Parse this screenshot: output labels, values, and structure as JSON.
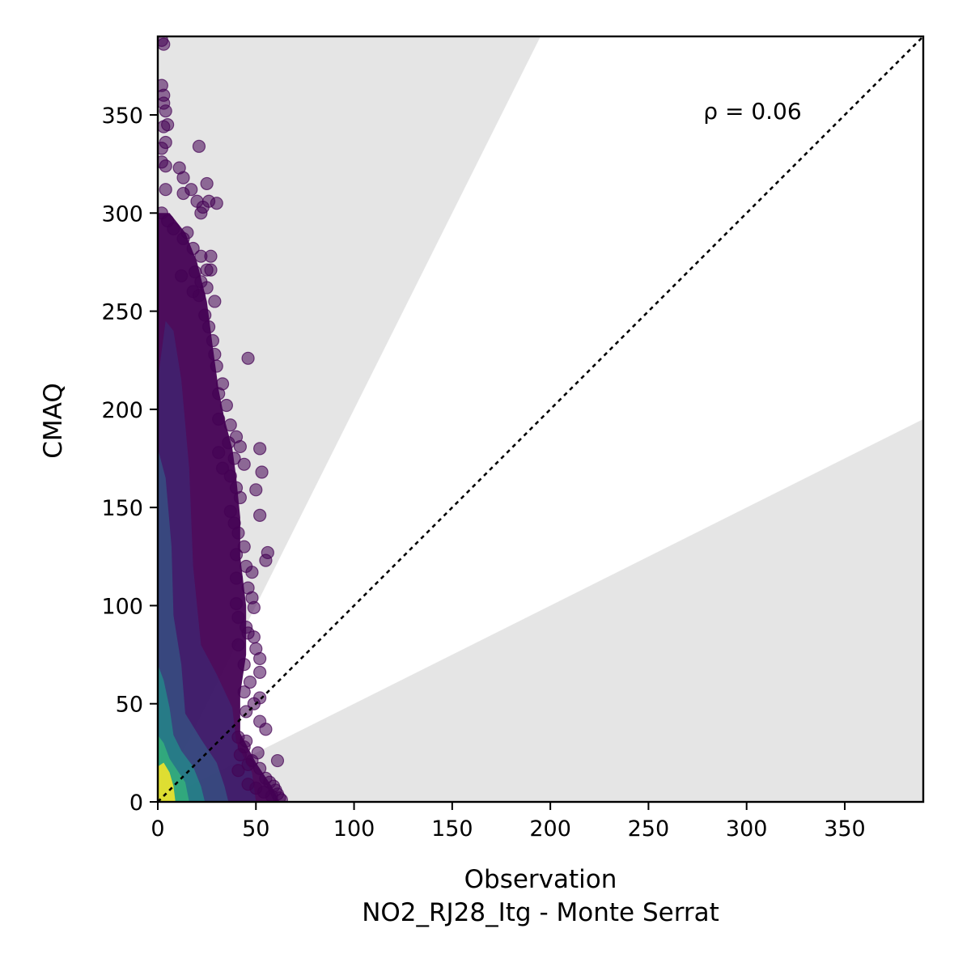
{
  "chart_data": {
    "type": "scatter",
    "title": "",
    "xlabel": "Observation",
    "xlabel_line2": "NO2_RJ28_Itg - Monte Serrat",
    "ylabel": "CMAQ",
    "xlim": [
      0,
      390
    ],
    "ylim": [
      0,
      390
    ],
    "xticks": [
      0,
      50,
      100,
      150,
      200,
      250,
      300,
      350
    ],
    "yticks": [
      0,
      50,
      100,
      150,
      200,
      250,
      300,
      350
    ],
    "xtick_labels": [
      "0",
      "50",
      "100",
      "150",
      "200",
      "250",
      "300",
      "350"
    ],
    "ytick_labels": [
      "0",
      "50",
      "100",
      "150",
      "200",
      "250",
      "300",
      "350"
    ],
    "annotation": "ρ = 0.06",
    "identity_line": true,
    "shaded_regions": "outside factor-of-2 band (y > 2x and y < 0.5x)",
    "grid": false,
    "colormap": "viridis (point density)",
    "colors": {
      "low_density": "#440154",
      "mid_density": "#31688e",
      "high_density": "#35b779",
      "peak_density": "#fde725",
      "shade": "#e5e5e5"
    },
    "points": [
      [
        2,
        388
      ],
      [
        3,
        386
      ],
      [
        2,
        365
      ],
      [
        3,
        360
      ],
      [
        3,
        356
      ],
      [
        4,
        352
      ],
      [
        3,
        344
      ],
      [
        5,
        345
      ],
      [
        4,
        336
      ],
      [
        21,
        334
      ],
      [
        2,
        333
      ],
      [
        2,
        326
      ],
      [
        4,
        324
      ],
      [
        11,
        323
      ],
      [
        13,
        318
      ],
      [
        17,
        312
      ],
      [
        4,
        312
      ],
      [
        25,
        315
      ],
      [
        26,
        306
      ],
      [
        13,
        310
      ],
      [
        20,
        306
      ],
      [
        22,
        300
      ],
      [
        30,
        305
      ],
      [
        23,
        303
      ],
      [
        2,
        300
      ],
      [
        5,
        296
      ],
      [
        8,
        292
      ],
      [
        15,
        290
      ],
      [
        13,
        287
      ],
      [
        18,
        282
      ],
      [
        22,
        278
      ],
      [
        27,
        278
      ],
      [
        25,
        271
      ],
      [
        19,
        270
      ],
      [
        27,
        271
      ],
      [
        12,
        268
      ],
      [
        22,
        265
      ],
      [
        25,
        262
      ],
      [
        18,
        260
      ],
      [
        29,
        255
      ],
      [
        21,
        258
      ],
      [
        24,
        248
      ],
      [
        26,
        242
      ],
      [
        28,
        235
      ],
      [
        29,
        228
      ],
      [
        46,
        226
      ],
      [
        30,
        222
      ],
      [
        33,
        213
      ],
      [
        31,
        208
      ],
      [
        35,
        202
      ],
      [
        31,
        195
      ],
      [
        37,
        192
      ],
      [
        40,
        186
      ],
      [
        42,
        181
      ],
      [
        36,
        183
      ],
      [
        52,
        180
      ],
      [
        31,
        178
      ],
      [
        39,
        175
      ],
      [
        44,
        172
      ],
      [
        53,
        168
      ],
      [
        33,
        170
      ],
      [
        37,
        166
      ],
      [
        40,
        160
      ],
      [
        50,
        159
      ],
      [
        42,
        155
      ],
      [
        37,
        148
      ],
      [
        52,
        146
      ],
      [
        39,
        142
      ],
      [
        41,
        137
      ],
      [
        44,
        130
      ],
      [
        56,
        127
      ],
      [
        55,
        123
      ],
      [
        40,
        126
      ],
      [
        45,
        120
      ],
      [
        48,
        117
      ],
      [
        40,
        114
      ],
      [
        46,
        109
      ],
      [
        48,
        104
      ],
      [
        40,
        101
      ],
      [
        49,
        99
      ],
      [
        41,
        94
      ],
      [
        45,
        89
      ],
      [
        46,
        86
      ],
      [
        49,
        84
      ],
      [
        41,
        80
      ],
      [
        50,
        78
      ],
      [
        52,
        73
      ],
      [
        44,
        70
      ],
      [
        52,
        66
      ],
      [
        47,
        61
      ],
      [
        44,
        56
      ],
      [
        52,
        53
      ],
      [
        49,
        50
      ],
      [
        45,
        46
      ],
      [
        52,
        41
      ],
      [
        55,
        37
      ],
      [
        41,
        33
      ],
      [
        45,
        31
      ],
      [
        44,
        28
      ],
      [
        51,
        25
      ],
      [
        42,
        24
      ],
      [
        48,
        21
      ],
      [
        61,
        21
      ],
      [
        46,
        19
      ],
      [
        52,
        17
      ],
      [
        41,
        16
      ],
      [
        55,
        12
      ],
      [
        57,
        10
      ],
      [
        59,
        8
      ],
      [
        60,
        6
      ],
      [
        61,
        4
      ],
      [
        62,
        2
      ],
      [
        63,
        1
      ],
      [
        58,
        3
      ],
      [
        54,
        5
      ],
      [
        50,
        7
      ],
      [
        46,
        9
      ]
    ]
  }
}
